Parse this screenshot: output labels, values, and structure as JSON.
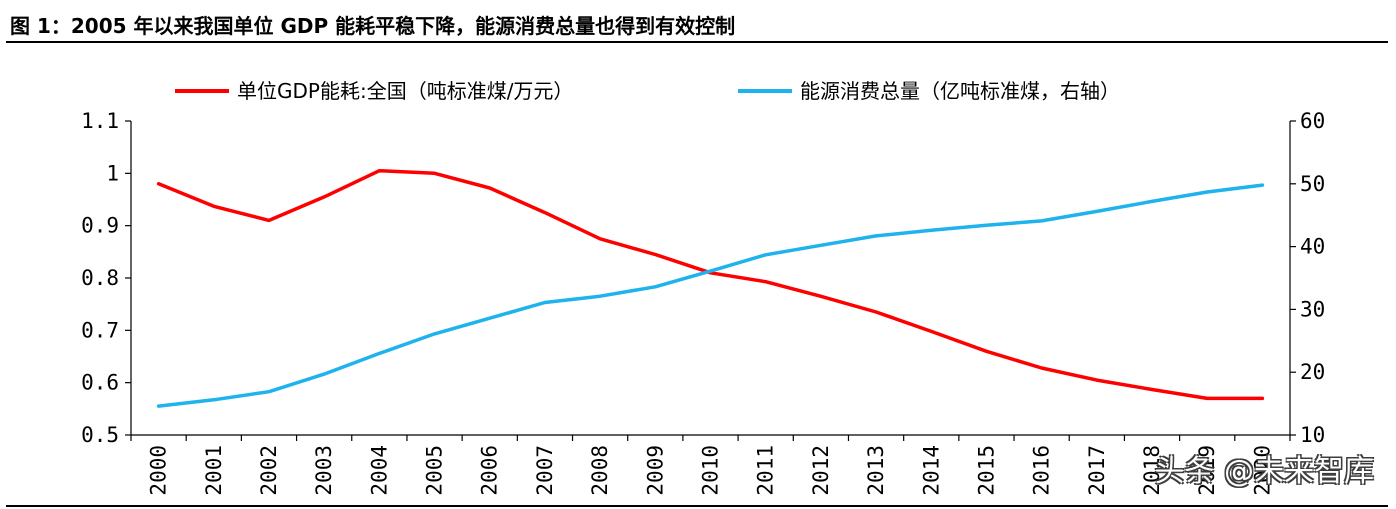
{
  "figure": {
    "title": "图 1：2005 年以来我国单位 GDP 能耗平稳下降，能源消费总量也得到有效控制",
    "watermark": "头条 @未来智库"
  },
  "chart_data": {
    "type": "line",
    "x": [
      "2000",
      "2001",
      "2002",
      "2003",
      "2004",
      "2005",
      "2006",
      "2007",
      "2008",
      "2009",
      "2010",
      "2011",
      "2012",
      "2013",
      "2014",
      "2015",
      "2016",
      "2017",
      "2018",
      "2019",
      "2020"
    ],
    "series": [
      {
        "name": "单位GDP能耗:全国（吨标准煤/万元）",
        "axis": "left",
        "color": "#ff0000",
        "values": [
          0.98,
          0.937,
          0.91,
          0.955,
          1.005,
          1.0,
          0.972,
          0.925,
          0.875,
          0.845,
          0.81,
          0.793,
          0.765,
          0.735,
          0.698,
          0.66,
          0.628,
          0.605,
          0.587,
          0.57,
          0.57
        ]
      },
      {
        "name": "能源消费总量（亿吨标准煤，右轴）",
        "axis": "right",
        "color": "#1fb3ee",
        "values": [
          14.6,
          15.6,
          16.9,
          19.7,
          23.0,
          26.1,
          28.6,
          31.1,
          32.1,
          33.6,
          36.1,
          38.7,
          40.2,
          41.7,
          42.6,
          43.4,
          44.1,
          45.6,
          47.2,
          48.7,
          49.8
        ]
      }
    ],
    "y_left": {
      "min": 0.5,
      "max": 1.1,
      "ticks": [
        "0.5",
        "0.6",
        "0.7",
        "0.8",
        "0.9",
        "1",
        "1.1"
      ]
    },
    "y_right": {
      "min": 10,
      "max": 60,
      "ticks": [
        "10",
        "20",
        "30",
        "40",
        "50",
        "60"
      ]
    },
    "legend": "top-center",
    "grid": false
  }
}
